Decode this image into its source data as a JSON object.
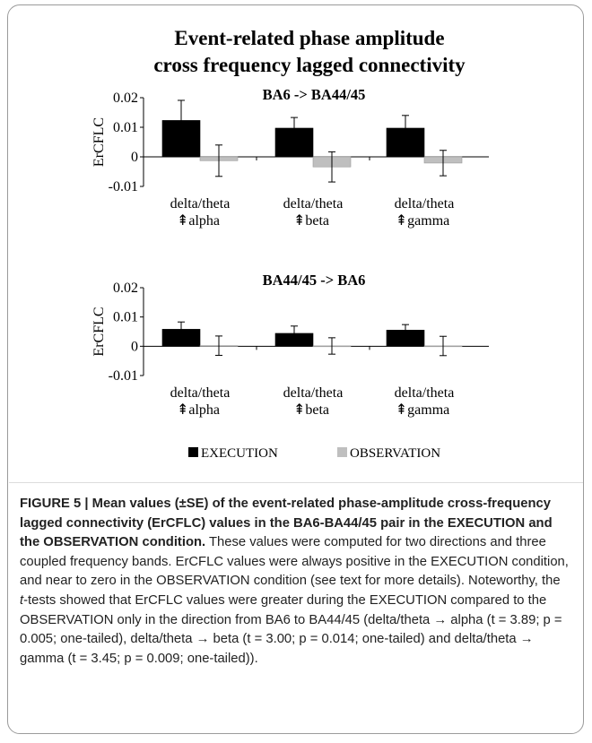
{
  "figure": {
    "title_line1": "Event-related phase amplitude",
    "title_line2": "cross frequency lagged connectivity"
  },
  "legend": {
    "position": "bottom-center",
    "items": [
      {
        "label": "EXECUTION",
        "color": "#000000"
      },
      {
        "label": "OBSERVATION",
        "color": "#bfbfbf"
      }
    ]
  },
  "chart_data": [
    {
      "type": "bar",
      "title": "BA6 -> BA44/45",
      "ylabel": "ErCFLC",
      "ylim": [
        -0.01,
        0.02
      ],
      "yticks": [
        "0.02",
        "0.01",
        "0",
        "-0.01"
      ],
      "categories": [
        [
          "delta/theta",
          "⇞alpha"
        ],
        [
          "delta/theta",
          "⇞beta"
        ],
        [
          "delta/theta",
          "⇞gamma"
        ]
      ],
      "series": [
        {
          "name": "EXECUTION",
          "color": "#000000",
          "values": [
            0.0123,
            0.0097,
            0.0097
          ],
          "errors": [
            0.0068,
            0.0036,
            0.0043
          ]
        },
        {
          "name": "OBSERVATION",
          "color": "#bfbfbf",
          "values": [
            -0.0013,
            -0.0034,
            -0.0021
          ],
          "errors": [
            0.0053,
            0.0051,
            0.0043
          ]
        }
      ]
    },
    {
      "type": "bar",
      "title": "BA44/45 -> BA6",
      "ylabel": "ErCFLC",
      "ylim": [
        -0.01,
        0.02
      ],
      "yticks": [
        "0.02",
        "0.01",
        "0",
        "-0.01"
      ],
      "categories": [
        [
          "delta/theta",
          "⇞alpha"
        ],
        [
          "delta/theta",
          "⇞beta"
        ],
        [
          "delta/theta",
          "⇞gamma"
        ]
      ],
      "series": [
        {
          "name": "EXECUTION",
          "color": "#000000",
          "values": [
            0.0058,
            0.0044,
            0.0055
          ],
          "errors": [
            0.0025,
            0.0025,
            0.0019
          ]
        },
        {
          "name": "OBSERVATION",
          "color": "#bfbfbf",
          "values": [
            0.0002,
            0.0001,
            0.0001
          ],
          "errors": [
            0.0033,
            0.0028,
            0.0033
          ]
        }
      ]
    }
  ],
  "caption": {
    "label": "FIGURE 5 |",
    "bold_text": "Mean values (±SE) of the event-related phase-amplitude cross-frequency lagged connectivity (ErCFLC) values in the BA6-BA44/45 pair in the EXECUTION and the OBSERVATION condition.",
    "text_part1": "These values were computed for two directions and three coupled frequency bands. ErCFLC values were always positive in the EXECUTION condition, and near to zero in the OBSERVATION condition (see text for more details). Noteworthy, the ",
    "t_var": "t",
    "text_part2": "-tests showed that ErCFLC values were greater during the EXECUTION compared to the OBSERVATION only in the direction from BA6 to BA44/45 (delta/theta → alpha (",
    "stat1": "t = 3.89; p = 0.005; one-tailed",
    "text_part3": "), delta/theta → beta (",
    "stat2": "t = 3.00; p = 0.014; one-tailed",
    "text_part4": ") and delta/theta → gamma (",
    "stat3": "t = 3.45; p = 0.009; one-tailed",
    "text_part5": "))."
  }
}
